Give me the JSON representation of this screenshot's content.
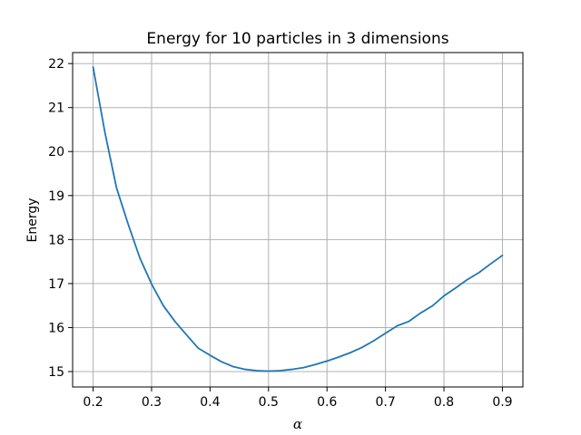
{
  "chart_data": {
    "type": "line",
    "title": "Energy for 10 particles in 3 dimensions",
    "xlabel": "α",
    "ylabel": "Energy",
    "xlim": [
      0.165,
      0.935
    ],
    "ylim": [
      14.65,
      22.25
    ],
    "xticks": [
      0.2,
      0.3,
      0.4,
      0.5,
      0.6,
      0.7,
      0.8,
      0.9
    ],
    "xtick_labels": [
      "0.2",
      "0.3",
      "0.4",
      "0.5",
      "0.6",
      "0.7",
      "0.8",
      "0.9"
    ],
    "yticks": [
      15,
      16,
      17,
      18,
      19,
      20,
      21,
      22
    ],
    "ytick_labels": [
      "15",
      "16",
      "17",
      "18",
      "19",
      "20",
      "21",
      "22"
    ],
    "grid": true,
    "line_color": "#1f77b4",
    "series": [
      {
        "x": [
          0.2,
          0.22,
          0.24,
          0.26,
          0.28,
          0.3,
          0.32,
          0.34,
          0.36,
          0.38,
          0.4,
          0.42,
          0.44,
          0.46,
          0.48,
          0.5,
          0.52,
          0.54,
          0.56,
          0.58,
          0.6,
          0.62,
          0.64,
          0.66,
          0.68,
          0.7,
          0.72,
          0.74,
          0.76,
          0.78,
          0.8,
          0.82,
          0.84,
          0.86,
          0.88,
          0.9
        ],
        "y": [
          21.92,
          20.45,
          19.18,
          18.35,
          17.58,
          16.99,
          16.5,
          16.14,
          15.83,
          15.53,
          15.37,
          15.22,
          15.11,
          15.05,
          15.02,
          15.01,
          15.02,
          15.05,
          15.09,
          15.16,
          15.24,
          15.33,
          15.43,
          15.55,
          15.7,
          15.87,
          16.04,
          16.14,
          16.33,
          16.49,
          16.72,
          16.9,
          17.09,
          17.25,
          17.45,
          17.64
        ]
      }
    ]
  }
}
